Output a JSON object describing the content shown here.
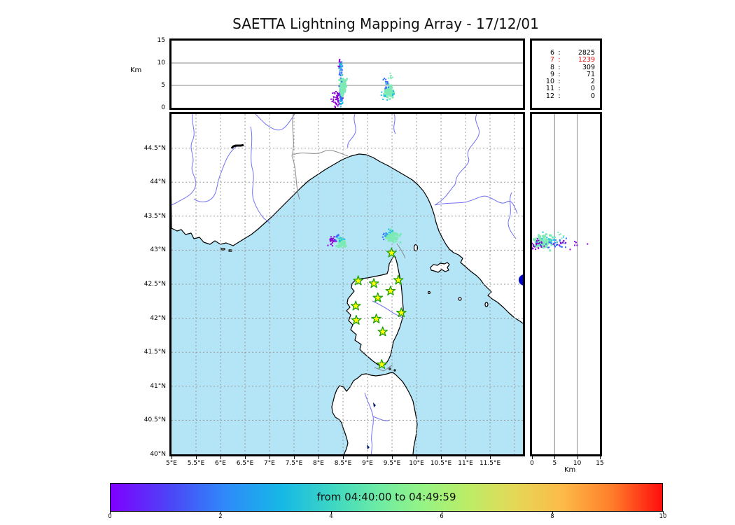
{
  "title": "SAETTA Lightning Mapping Array - 17/12/01",
  "top_axis": {
    "ylabel": "Km",
    "yticks": [
      "0",
      "5",
      "10",
      "15"
    ]
  },
  "right_axis": {
    "xlabel": "Km",
    "xticks": [
      "0",
      "5",
      "10",
      "15"
    ]
  },
  "map_axis": {
    "lat_ticks": [
      "44.5°N",
      "44°N",
      "43.5°N",
      "43°N",
      "42.5°N",
      "42°N",
      "41.5°N",
      "41°N",
      "40.5°N",
      "40°N"
    ],
    "lat_values": [
      44.5,
      44,
      43.5,
      43,
      42.5,
      42,
      41.5,
      41,
      40.5,
      40
    ],
    "lon_ticks": [
      "5°E",
      "5.5°E",
      "6°E",
      "6.5°E",
      "7°E",
      "7.5°E",
      "8°E",
      "8.5°E",
      "9°E",
      "9.5°E",
      "10°E",
      "10.5°E",
      "11°E",
      "11.5°E"
    ],
    "lon_values": [
      5,
      5.5,
      6,
      6.5,
      7,
      7.5,
      8,
      8.5,
      9,
      9.5,
      10,
      10.5,
      11,
      11.5
    ]
  },
  "stats": {
    "rows": [
      {
        "level": "6",
        "count": "2825",
        "highlight": false
      },
      {
        "level": "7",
        "count": "1239",
        "highlight": true
      },
      {
        "level": "8",
        "count": "309",
        "highlight": false
      },
      {
        "level": "9",
        "count": "71",
        "highlight": false
      },
      {
        "level": "10",
        "count": "2",
        "highlight": false
      },
      {
        "level": "11",
        "count": "0",
        "highlight": false
      },
      {
        "level": "12",
        "count": "0",
        "highlight": false
      }
    ],
    "highlight_color": "#ee1111"
  },
  "colorbar": {
    "label": "from 04:40:00 to 04:49:59",
    "ticks": [
      "0",
      "2",
      "4",
      "6",
      "8",
      "10"
    ],
    "tick_values": [
      0,
      2,
      4,
      6,
      8,
      10
    ],
    "range": [
      0,
      10
    ]
  },
  "colors": {
    "sea": "#b3e5f6",
    "land": "#ffffff",
    "coast": "#000000",
    "river": "#7272f2",
    "border_line": "#8a8a8a",
    "grid_dashed": "#999999",
    "grid_solid": "#888888",
    "star_fill": "#ffff00",
    "star_stroke": "#1f9e12",
    "lake": "#0000cc",
    "point_purple": "#8a00d4",
    "point_blue": "#2f6bff",
    "point_cyan": "#17bde4",
    "point_green": "#7deab5"
  },
  "chart_data": {
    "type": "scatter",
    "title": "SAETTA Lightning Mapping Array - 17/12/01",
    "time_window": "from 04:40:00 to 04:49:59",
    "map_extent": {
      "lon_range": [
        5,
        12.17
      ],
      "lat_range": [
        40,
        45
      ]
    },
    "altitude_range_km": [
      0,
      15
    ],
    "altitude_gridlines_km": [
      5,
      10
    ],
    "source_counts_by_level": [
      [
        "6",
        2825
      ],
      [
        "7",
        1239
      ],
      [
        "8",
        309
      ],
      [
        "9",
        71
      ],
      [
        "10",
        2
      ],
      [
        "11",
        0
      ],
      [
        "12",
        0
      ]
    ],
    "stations_lonlat": [
      [
        9.49,
        42.96
      ],
      [
        8.81,
        42.55
      ],
      [
        9.13,
        42.51
      ],
      [
        9.63,
        42.56
      ],
      [
        9.47,
        42.4
      ],
      [
        9.21,
        42.3
      ],
      [
        8.76,
        42.18
      ],
      [
        9.69,
        42.08
      ],
      [
        9.18,
        41.99
      ],
      [
        8.77,
        41.97
      ],
      [
        9.31,
        41.8
      ],
      [
        9.29,
        41.32
      ]
    ],
    "clusters": {
      "lon_alt": [
        {
          "n": 40,
          "x": 8.36,
          "y": 1.9,
          "sx": 0.05,
          "sy": 1.0,
          "c": "purple",
          "s": 2
        },
        {
          "n": 20,
          "x": 8.46,
          "y": 1.6,
          "sx": 0.02,
          "sy": 0.8,
          "c": "cyan",
          "s": 2
        },
        {
          "n": 18,
          "x": 8.43,
          "y": 3.1,
          "sx": 0.03,
          "sy": 0.9,
          "c": "purple",
          "s": 2
        },
        {
          "n": 35,
          "x": 8.48,
          "y": 4.6,
          "sx": 0.025,
          "sy": 1.6,
          "c": "blue",
          "s": 2
        },
        {
          "n": 25,
          "x": 8.47,
          "y": 2.6,
          "sx": 0.02,
          "sy": 0.9,
          "c": "blue",
          "s": 2
        },
        {
          "n": 90,
          "x": 8.5,
          "y": 4.9,
          "sx": 0.035,
          "sy": 1.2,
          "c": "green",
          "s": 3
        },
        {
          "n": 22,
          "x": 8.45,
          "y": 8.6,
          "sx": 0.022,
          "sy": 1.1,
          "c": "blue",
          "s": 2
        },
        {
          "n": 12,
          "x": 8.44,
          "y": 10.0,
          "sx": 0.015,
          "sy": 0.6,
          "c": "purple",
          "s": 2
        },
        {
          "n": 10,
          "x": 8.44,
          "y": 9.4,
          "sx": 0.02,
          "sy": 0.8,
          "c": "cyan",
          "s": 2
        },
        {
          "n": 85,
          "x": 9.43,
          "y": 3.7,
          "sx": 0.055,
          "sy": 0.75,
          "c": "green",
          "s": 3
        },
        {
          "n": 14,
          "x": 9.38,
          "y": 5.2,
          "sx": 0.04,
          "sy": 1.0,
          "c": "blue",
          "s": 2
        },
        {
          "n": 9,
          "x": 9.46,
          "y": 7.3,
          "sx": 0.05,
          "sy": 1.3,
          "c": "green",
          "s": 2
        },
        {
          "n": 7,
          "x": 9.33,
          "y": 2.7,
          "sx": 0.04,
          "sy": 0.5,
          "c": "cyan",
          "s": 2
        },
        {
          "n": 5,
          "x": 9.52,
          "y": 3.0,
          "sx": 0.03,
          "sy": 0.6,
          "c": "cyan",
          "s": 2
        }
      ],
      "lon_lat": [
        {
          "n": 26,
          "x": 8.28,
          "y": 43.15,
          "sx": 0.05,
          "sy": 0.05,
          "c": "purple",
          "s": 2
        },
        {
          "n": 7,
          "x": 8.38,
          "y": 43.2,
          "sx": 0.03,
          "sy": 0.03,
          "c": "blue",
          "s": 2
        },
        {
          "n": 55,
          "x": 8.47,
          "y": 43.1,
          "sx": 0.05,
          "sy": 0.04,
          "c": "green",
          "s": 3
        },
        {
          "n": 9,
          "x": 8.45,
          "y": 43.16,
          "sx": 0.04,
          "sy": 0.03,
          "c": "cyan",
          "s": 2
        },
        {
          "n": 16,
          "x": 9.36,
          "y": 43.22,
          "sx": 0.05,
          "sy": 0.035,
          "c": "blue",
          "s": 2
        },
        {
          "n": 60,
          "x": 9.52,
          "y": 43.18,
          "sx": 0.085,
          "sy": 0.05,
          "c": "green",
          "s": 3
        },
        {
          "n": 8,
          "x": 9.44,
          "y": 43.27,
          "sx": 0.05,
          "sy": 0.03,
          "c": "cyan",
          "s": 2
        }
      ],
      "alt_lat": [
        {
          "n": 90,
          "x": 2.3,
          "y": 43.12,
          "sx": 1.3,
          "sy": 0.055,
          "c": "green",
          "s": 3
        },
        {
          "n": 24,
          "x": 1.1,
          "y": 43.07,
          "sx": 0.9,
          "sy": 0.05,
          "c": "purple",
          "s": 2
        },
        {
          "n": 28,
          "x": 5.5,
          "y": 43.1,
          "sx": 2.3,
          "sy": 0.05,
          "c": "blue",
          "s": 2
        },
        {
          "n": 14,
          "x": 8.8,
          "y": 43.1,
          "sx": 2.0,
          "sy": 0.05,
          "c": "purple",
          "s": 2
        },
        {
          "n": 12,
          "x": 4.2,
          "y": 43.18,
          "sx": 1.6,
          "sy": 0.06,
          "c": "cyan",
          "s": 2
        },
        {
          "n": 6,
          "x": 6.0,
          "y": 43.22,
          "sx": 1.5,
          "sy": 0.04,
          "c": "green",
          "s": 2
        }
      ]
    }
  }
}
